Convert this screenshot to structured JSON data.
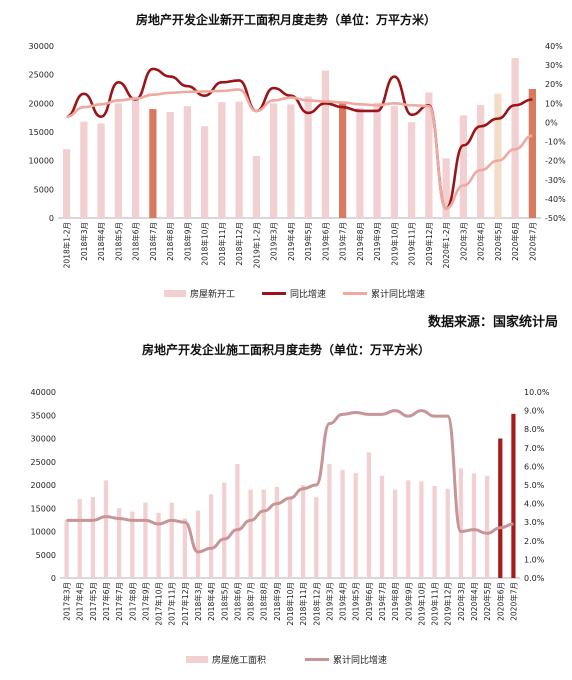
{
  "source_label": "数据来源：国家统计局",
  "colors": {
    "bar": "#f2cfd0",
    "bar_highlight": "#d97a60",
    "bar_dark": "#a51c1c",
    "bar_light_peach": "#f5dcc8",
    "line_dark": "#9b1418",
    "line_light": "#efa9a0",
    "line_mauve": "#c79597"
  },
  "chart_data": [
    {
      "type": "bar",
      "title": "房地产开发企业新开工面积月度走势（单位：万平方米）",
      "categories": [
        "2018年1-2月",
        "2018年3月",
        "2018年4月",
        "2018年5月",
        "2018年6月",
        "2018年7月",
        "2018年8月",
        "2018年9月",
        "2018年10月",
        "2018年11月",
        "2018年12月",
        "2019年1-2月",
        "2019年3月",
        "2019年4月",
        "2019年5月",
        "2019年6月",
        "2019年7月",
        "2019年8月",
        "2019年9月",
        "2019年10月",
        "2019年11月",
        "2019年12月",
        "2020年1-2月",
        "2020年3月",
        "2020年4月",
        "2020年5月",
        "2020年6月",
        "2020年7月"
      ],
      "left_axis": {
        "ticks": [
          "0",
          "5000",
          "10000",
          "15000",
          "20000",
          "25000",
          "30000"
        ],
        "min": 0,
        "max": 30000
      },
      "right_axis": {
        "ticks": [
          "-50%",
          "-40%",
          "-30%",
          "-20%",
          "-10%",
          "0%",
          "10%",
          "20%",
          "30%",
          "40%"
        ],
        "min": -50,
        "max": 40
      },
      "series": [
        {
          "name": "房屋新开工",
          "kind": "bar",
          "axis": "left",
          "values": [
            12000,
            16800,
            16500,
            20000,
            20800,
            19000,
            18500,
            19500,
            16000,
            20200,
            20300,
            10800,
            20000,
            19800,
            21200,
            25700,
            20100,
            19200,
            20100,
            19500,
            16700,
            21900,
            10400,
            17900,
            19700,
            21700,
            27900,
            22500
          ],
          "highlight": [
            5,
            16,
            27
          ],
          "peach": [
            25
          ]
        },
        {
          "name": "同比增速",
          "kind": "line",
          "axis": "right",
          "values": [
            3,
            15,
            3,
            21,
            12,
            28,
            24,
            19,
            14,
            21,
            22,
            6,
            18,
            14,
            5,
            10,
            8,
            6,
            6,
            24,
            4,
            9,
            -45,
            -12,
            -2,
            2,
            9,
            12
          ]
        },
        {
          "name": "累计同比增速",
          "kind": "line",
          "axis": "right",
          "values": [
            3,
            8,
            9.5,
            11.5,
            12.5,
            14.5,
            15.5,
            16,
            16.2,
            16.5,
            17.2,
            6,
            11.5,
            13,
            11.5,
            11,
            10.5,
            9.5,
            9,
            10,
            9,
            8.5,
            -45,
            -33,
            -25,
            -20,
            -14,
            -7
          ]
        }
      ]
    },
    {
      "type": "bar",
      "title": "房地产开发企业施工面积月度走势（单位：万平方米）",
      "categories": [
        "2017年3月",
        "2017年4月",
        "2017年5月",
        "2017年6月",
        "2017年7月",
        "2017年8月",
        "2017年9月",
        "2017年10月",
        "2017年11月",
        "2017年12月",
        "2018年3月",
        "2018年4月",
        "2018年5月",
        "2018年6月",
        "2018年7月",
        "2018年8月",
        "2018年9月",
        "2018年10月",
        "2018年11月",
        "2018年12月",
        "2019年3月",
        "2019年4月",
        "2019年5月",
        "2019年6月",
        "2019年7月",
        "2019年8月",
        "2019年9月",
        "2019年10月",
        "2019年11月",
        "2019年12月",
        "2020年3月",
        "2020年4月",
        "2020年5月",
        "2020年6月",
        "2020年7月"
      ],
      "left_axis": {
        "ticks": [
          "0",
          "5000",
          "10000",
          "15000",
          "20000",
          "25000",
          "30000",
          "35000",
          "40000"
        ],
        "min": 0,
        "max": 40000
      },
      "right_axis": {
        "ticks": [
          "0.0%",
          "1.0%",
          "2.0%",
          "3.0%",
          "4.0%",
          "5.0%",
          "6.0%",
          "7.0%",
          "8.0%",
          "9.0%",
          "10.0%"
        ],
        "min": 0,
        "max": 10
      },
      "series": [
        {
          "name": "房屋施工面积",
          "kind": "bar",
          "axis": "left",
          "values": [
            12500,
            17000,
            17400,
            21000,
            15000,
            14300,
            16200,
            14000,
            16200,
            12800,
            14500,
            18000,
            20500,
            24500,
            19000,
            19000,
            19600,
            17200,
            20000,
            17400,
            24500,
            23200,
            22600,
            27000,
            22000,
            19000,
            21000,
            20800,
            19800,
            19200,
            23600,
            22500,
            22000,
            30000,
            35300
          ],
          "dark": [
            33,
            34
          ]
        },
        {
          "name": "累计同比增速",
          "kind": "line",
          "axis": "right",
          "values": [
            3.1,
            3.1,
            3.1,
            3.3,
            3.2,
            3.1,
            3.1,
            2.9,
            3.1,
            3.0,
            1.4,
            1.6,
            2.1,
            2.6,
            3.1,
            3.6,
            4.0,
            4.3,
            4.8,
            5.0,
            8.3,
            8.8,
            8.9,
            8.8,
            8.8,
            9.0,
            8.7,
            9.0,
            8.7,
            8.7,
            2.5,
            2.6,
            2.4,
            2.7,
            2.9
          ]
        }
      ]
    }
  ]
}
